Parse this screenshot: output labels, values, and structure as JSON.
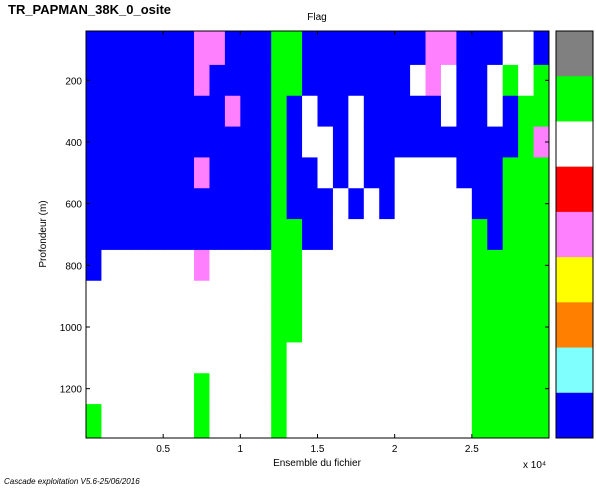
{
  "chart_data": {
    "type": "heatmap",
    "title": "TR_PAPMAN_38K_0_osite",
    "subtitle": "Flag",
    "x_label": "Ensemble du fichier",
    "y_label": "Profondeur (m)",
    "x_exponent": "x 10⁴",
    "footer": "Cascade exploitation V5.6-25/06/2016",
    "xlim": [
      0,
      3.0
    ],
    "ylim": [
      1360,
      40
    ],
    "xticks": [
      0.5,
      1,
      1.5,
      2,
      2.5
    ],
    "yticks": [
      200,
      400,
      600,
      800,
      1000,
      1200
    ],
    "x_edges": [
      0,
      0.1,
      0.2,
      0.3,
      0.4,
      0.5,
      0.6,
      0.7,
      0.8,
      0.9,
      1.0,
      1.1,
      1.2,
      1.3,
      1.4,
      1.5,
      1.6,
      1.7,
      1.8,
      1.9,
      2.0,
      2.1,
      2.2,
      2.3,
      2.4,
      2.5,
      2.6,
      2.7,
      2.8,
      2.9,
      3.0
    ],
    "y_edges": [
      40,
      150,
      250,
      350,
      450,
      550,
      650,
      750,
      850,
      950,
      1050,
      1150,
      1250,
      1360
    ],
    "colors": [
      "#808080",
      "#00ff00",
      "#ffffff",
      "#ff0000",
      "#ff80ff",
      "#ffff00",
      "#ff8000",
      "#80ffff",
      "#0000ff"
    ],
    "z": [
      [
        8,
        8,
        8,
        8,
        8,
        8,
        8,
        8,
        2,
        2,
        2,
        2,
        1
      ],
      [
        8,
        8,
        8,
        8,
        8,
        8,
        8,
        2,
        2,
        2,
        2,
        2,
        2
      ],
      [
        8,
        8,
        8,
        8,
        8,
        8,
        8,
        2,
        2,
        2,
        2,
        2,
        2
      ],
      [
        8,
        8,
        8,
        8,
        8,
        8,
        8,
        2,
        2,
        2,
        2,
        2,
        2
      ],
      [
        8,
        8,
        8,
        8,
        8,
        8,
        8,
        2,
        2,
        2,
        2,
        2,
        2
      ],
      [
        8,
        8,
        8,
        8,
        8,
        8,
        8,
        2,
        2,
        2,
        2,
        2,
        2
      ],
      [
        8,
        8,
        8,
        8,
        8,
        8,
        8,
        2,
        2,
        2,
        2,
        2,
        2
      ],
      [
        4,
        4,
        8,
        8,
        4,
        8,
        8,
        4,
        2,
        2,
        2,
        1,
        1
      ],
      [
        4,
        8,
        8,
        8,
        8,
        8,
        8,
        2,
        2,
        2,
        2,
        2,
        2
      ],
      [
        8,
        8,
        4,
        8,
        8,
        8,
        8,
        2,
        2,
        2,
        2,
        2,
        2
      ],
      [
        8,
        8,
        8,
        8,
        8,
        8,
        8,
        2,
        2,
        2,
        2,
        2,
        2
      ],
      [
        8,
        8,
        8,
        8,
        8,
        8,
        8,
        2,
        2,
        2,
        2,
        2,
        2
      ],
      [
        1,
        1,
        1,
        1,
        1,
        1,
        1,
        1,
        1,
        1,
        1,
        1,
        1
      ],
      [
        1,
        1,
        8,
        8,
        8,
        8,
        1,
        1,
        1,
        1,
        2,
        2,
        2
      ],
      [
        8,
        8,
        2,
        2,
        8,
        8,
        8,
        2,
        2,
        2,
        2,
        2,
        2
      ],
      [
        8,
        8,
        8,
        2,
        2,
        8,
        8,
        2,
        2,
        2,
        2,
        2,
        2
      ],
      [
        8,
        8,
        8,
        8,
        8,
        2,
        2,
        2,
        2,
        2,
        2,
        2,
        2
      ],
      [
        8,
        8,
        2,
        2,
        2,
        8,
        2,
        2,
        2,
        2,
        2,
        2,
        2
      ],
      [
        8,
        8,
        8,
        8,
        8,
        2,
        2,
        2,
        2,
        2,
        2,
        2,
        2
      ],
      [
        8,
        8,
        8,
        8,
        8,
        8,
        2,
        2,
        2,
        2,
        2,
        2,
        2
      ],
      [
        8,
        8,
        8,
        8,
        2,
        2,
        2,
        2,
        2,
        2,
        2,
        2,
        2
      ],
      [
        8,
        2,
        8,
        8,
        2,
        2,
        2,
        2,
        2,
        2,
        2,
        2,
        2
      ],
      [
        4,
        4,
        8,
        8,
        2,
        2,
        2,
        2,
        2,
        2,
        2,
        2,
        2
      ],
      [
        4,
        2,
        2,
        8,
        2,
        2,
        2,
        2,
        2,
        2,
        2,
        2,
        2
      ],
      [
        8,
        8,
        8,
        8,
        8,
        2,
        2,
        2,
        2,
        2,
        2,
        2,
        2
      ],
      [
        8,
        8,
        8,
        8,
        8,
        8,
        1,
        1,
        1,
        1,
        1,
        1,
        1
      ],
      [
        8,
        2,
        2,
        8,
        8,
        8,
        8,
        1,
        1,
        1,
        1,
        1,
        1
      ],
      [
        2,
        1,
        8,
        8,
        1,
        1,
        1,
        1,
        1,
        1,
        1,
        1,
        1
      ],
      [
        2,
        2,
        1,
        1,
        1,
        1,
        1,
        1,
        1,
        1,
        1,
        1,
        1
      ],
      [
        8,
        1,
        1,
        4,
        1,
        1,
        1,
        1,
        1,
        1,
        1,
        1,
        1
      ]
    ]
  }
}
